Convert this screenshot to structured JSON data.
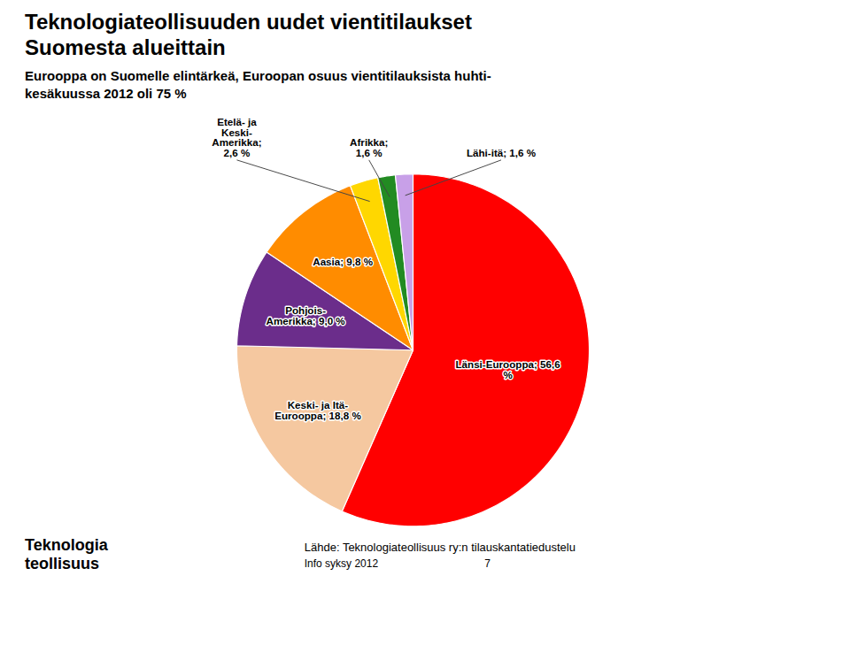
{
  "chart_data": {
    "type": "pie",
    "title": "Teknologiateollisuuden uudet vientitilaukset\nSuomesta alueittain",
    "subtitle": "Eurooppa on Suomelle elintärkeä, Euroopan osuus vientitilauksista huhti-\nkesäkuussa 2012 oli 75 %",
    "categories": [
      "Länsi-Eurooppa; 56,6\n%",
      "Keski- ja Itä-\nEurooppa; 18,8 %",
      "Pohjois-\nAmerikka; 9,0 %",
      "Aasia; 9,8 %",
      "Etelä- ja\nKeski-\nAmerikka;\n2,6 %",
      "Afrikka;\n1,6 %",
      "Lähi-itä; 1,6 %"
    ],
    "values": [
      56.6,
      18.8,
      9.0,
      9.8,
      2.6,
      1.6,
      1.6
    ],
    "colors": [
      "#FF0000",
      "#F5C8A0",
      "#6B2D8B",
      "#FF8C00",
      "#FFD700",
      "#228B22",
      "#C8A0E8"
    ],
    "annotations": [
      "Lähde: Teknologiateollisuus ry:n tilauskantatiedustelu",
      "Info syksy 2012",
      "7",
      "Teknologia",
      "teollisuus"
    ]
  }
}
